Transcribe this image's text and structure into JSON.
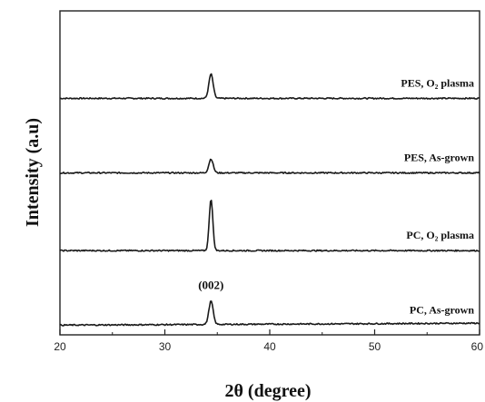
{
  "chart_data": {
    "type": "line",
    "xlabel": "2θ (degree)",
    "ylabel": "Intensity (a.u)",
    "xlim": [
      20,
      60
    ],
    "x_ticks": [
      "20",
      "30",
      "40",
      "50",
      "60"
    ],
    "grid": false,
    "annotations": [
      {
        "text": "(002)",
        "x": 34.4
      }
    ],
    "series": [
      {
        "name": "PES, O₂ plasma",
        "peak_x": 34.4,
        "baseline": 0.73,
        "peak_height": 0.075,
        "peak_width": 0.3
      },
      {
        "name": "PES, As-grown",
        "peak_x": 34.4,
        "baseline": 0.5,
        "peak_height": 0.043,
        "peak_width": 0.3
      },
      {
        "name": "PC, O₂ plasma",
        "peak_x": 34.4,
        "baseline": 0.26,
        "peak_height": 0.16,
        "peak_width": 0.25
      },
      {
        "name": "PC, As-grown",
        "peak_x": 34.4,
        "baseline": 0.03,
        "peak_height": 0.072,
        "peak_width": 0.3
      }
    ]
  }
}
